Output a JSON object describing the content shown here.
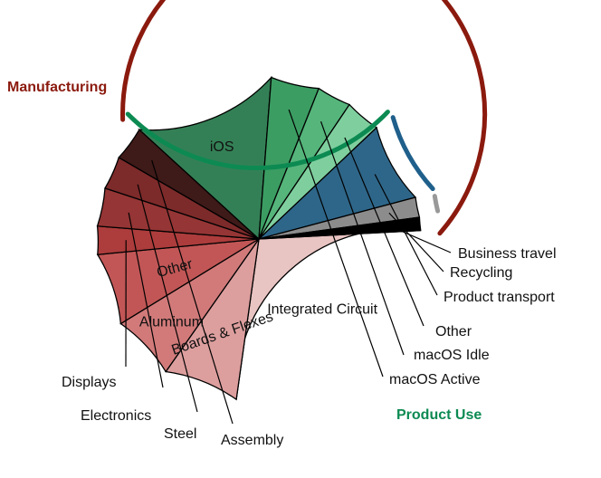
{
  "chart_data": {
    "type": "pie",
    "groups": [
      {
        "name": "Manufacturing",
        "color": "#8b1a0e"
      },
      {
        "name": "Product Use",
        "color": "#0c8a52"
      },
      {
        "name": "Product transport",
        "color": "#1f5f8b"
      },
      {
        "name": "Recycling",
        "color": "#999999"
      }
    ],
    "slices": [
      {
        "label": "Integrated Circuit",
        "value": 28.0,
        "color": "#e8c4c2",
        "group": "Manufacturing"
      },
      {
        "label": "Boards & Flexes",
        "value": 7.5,
        "color": "#dd9e9e",
        "group": "Manufacturing"
      },
      {
        "label": "Aluminum",
        "value": 6.5,
        "color": "#d27a7a",
        "group": "Manufacturing"
      },
      {
        "label": "Other",
        "value": 7.2,
        "color": "#c25656",
        "group": "Manufacturing"
      },
      {
        "label": "Displays",
        "value": 2.8,
        "color": "#ad3c3c",
        "group": "Manufacturing"
      },
      {
        "label": "Electronics",
        "value": 3.8,
        "color": "#953535",
        "group": "Manufacturing"
      },
      {
        "label": "Steel",
        "value": 3.3,
        "color": "#7d2a2a",
        "group": "Manufacturing"
      },
      {
        "label": "Assembly",
        "value": 3.4,
        "color": "#3e1a18",
        "group": "Manufacturing"
      },
      {
        "label": "iOS",
        "value": 14.4,
        "color": "#348056",
        "group": "Product Use"
      },
      {
        "label": "macOS Active",
        "value": 4.8,
        "color": "#3b9d62",
        "group": "Product Use"
      },
      {
        "label": "macOS Idle",
        "value": 3.4,
        "color": "#55b57b",
        "group": "Product Use"
      },
      {
        "label": "Other",
        "value": 3.5,
        "color": "#7fcf9e",
        "group": "Product Use"
      },
      {
        "label": "Product transport",
        "value": 7.9,
        "color": "#2e6689",
        "group": "Product transport"
      },
      {
        "label": "Recycling",
        "value": 2.0,
        "color": "#8c8c8c",
        "group": "Recycling"
      },
      {
        "label": "Business travel",
        "value": 1.3,
        "color": "#000000",
        "group": "Business travel"
      }
    ]
  }
}
